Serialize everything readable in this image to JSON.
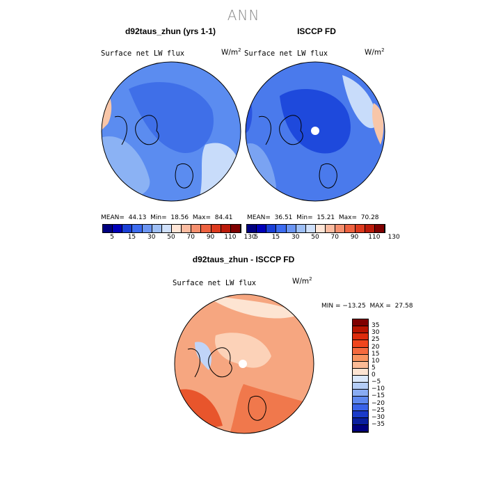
{
  "page": {
    "title": "ANN"
  },
  "panels": [
    {
      "title": "d92taus_zhun (yrs 1-1)",
      "variable": "Surface net LW flux",
      "units_base": "W/m",
      "units_exp": "2",
      "mean_label": "MEAN=",
      "mean": "44.13",
      "min_label": "Min=",
      "min": "18.56",
      "max_label": "Max=",
      "max": "84.41"
    },
    {
      "title": "ISCCP FD",
      "variable": "Surface net LW flux",
      "units_base": "W/m",
      "units_exp": "2",
      "mean_label": "MEAN=",
      "mean": "36.51",
      "min_label": "Min=",
      "min": "15.21",
      "max_label": "Max=",
      "max": "70.28"
    },
    {
      "title": "d92taus_zhun - ISCCP FD",
      "variable": "Surface net LW flux",
      "units_base": "W/m",
      "units_exp": "2",
      "minmax": "MIN = −13.25  MAX =  27.58"
    }
  ],
  "colorbar_top": {
    "labels": [
      "5",
      "15",
      "30",
      "50",
      "70",
      "90",
      "110",
      "130"
    ],
    "colors": [
      "#00007f",
      "#0000b8",
      "#1a3fd6",
      "#3d6cf0",
      "#6b95f2",
      "#9ebff5",
      "#cfe0fa",
      "#ffe5d6",
      "#fbbba0",
      "#f58f6e",
      "#ee6240",
      "#dd3a1e",
      "#bb1a0a",
      "#7f0000"
    ]
  },
  "colorbar_diff": {
    "labels": [
      "35",
      "30",
      "25",
      "20",
      "15",
      "10",
      "5",
      "0",
      "−5",
      "−10",
      "−15",
      "−20",
      "−25",
      "−30",
      "−35"
    ],
    "colors": [
      "#7f0000",
      "#b81400",
      "#dd2c0c",
      "#f0461e",
      "#f56a3e",
      "#f8935f",
      "#fbbb96",
      "#fde4d2",
      "#dbe8fb",
      "#b4cdf7",
      "#89acf3",
      "#5e88ef",
      "#3a63e8",
      "#1a3bc9",
      "#0a1f9e",
      "#00007f"
    ]
  },
  "maps": [
    {
      "fill": "#5b8cf0",
      "regions": [
        "#3f6fe8",
        "#8bb2f4",
        "#c8dcfa",
        "#f8c6a8",
        "#2c58dc"
      ]
    },
    {
      "fill": "#4a7aec",
      "regions": [
        "#1e49dc",
        "#7aa3f2",
        "#c8dcfa",
        "#f8c6a8",
        "#2a54e0"
      ]
    },
    {
      "fill": "#f6a680",
      "regions": [
        "#f0784c",
        "#fcd2b8",
        "#c0d4f8",
        "#e8552c",
        "#fde4d2"
      ]
    }
  ]
}
